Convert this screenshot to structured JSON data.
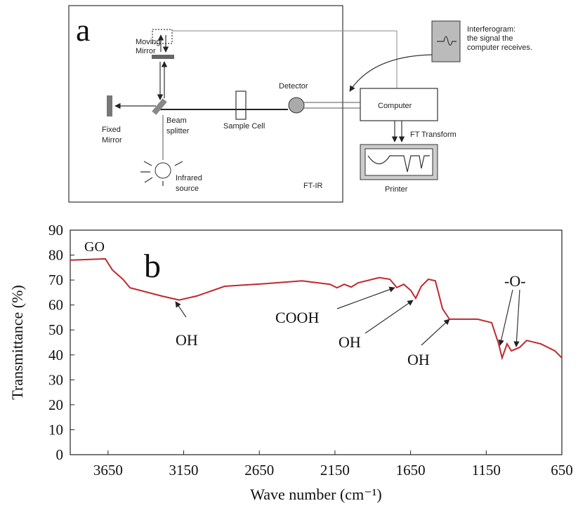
{
  "panel_a": {
    "label": "a",
    "moving_mirror": [
      "Moving",
      "Mirror"
    ],
    "fixed_mirror": [
      "Fixed",
      "Mirror"
    ],
    "beam_splitter": [
      "Beam",
      "splitter"
    ],
    "sample_cell": "Sample Cell",
    "detector": "Detector",
    "infrared_source": [
      "Infrared",
      "source"
    ],
    "ftir": "FT-IR",
    "computer": "Computer",
    "ft_transform": "FT Transform",
    "printer": "Printer",
    "interferogram": [
      "Interferogram:",
      "the signal the",
      "computer receives."
    ]
  },
  "chart_data": {
    "type": "line",
    "panel_label": "b",
    "xlabel": "Wave number (cm⁻¹)",
    "ylabel": "Transmittance (%)",
    "color": "#c0282d",
    "x": [
      3900,
      3668,
      3621,
      3552,
      3505,
      3296,
      3180,
      3064,
      2879,
      2600,
      2368,
      2182,
      2136,
      2089,
      2043,
      1996,
      1857,
      1787,
      1741,
      1695,
      1648,
      1616,
      1579,
      1532,
      1486,
      1439,
      1393,
      1207,
      1114,
      1068,
      1045,
      1012,
      984,
      929,
      882,
      789,
      696,
      650
    ],
    "values": [
      78,
      78.5,
      74,
      70.3,
      66.9,
      63.6,
      62,
      63.6,
      67.5,
      68.6,
      69.7,
      68.3,
      66.9,
      68.3,
      67.2,
      68.9,
      71,
      70.3,
      67,
      68.3,
      65.8,
      62.7,
      67.5,
      70.3,
      69.7,
      58.5,
      54.3,
      54.3,
      52.9,
      44.4,
      38.8,
      44.4,
      41.6,
      43,
      45.8,
      44.4,
      41.6,
      38.8
    ],
    "xlim": [
      3900,
      650
    ],
    "xticks": [
      3650,
      3150,
      2650,
      2150,
      1650,
      1150,
      650
    ],
    "ylim": [
      0,
      90
    ],
    "yticks": [
      0,
      10,
      20,
      30,
      40,
      50,
      60,
      70,
      80,
      90
    ],
    "annotations": [
      "GO",
      "OH",
      "COOH",
      "OH",
      "OH",
      "-O-"
    ]
  }
}
